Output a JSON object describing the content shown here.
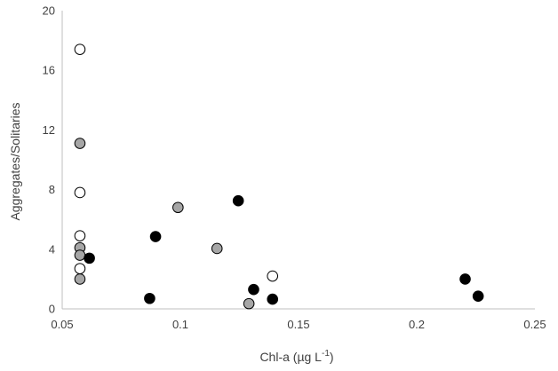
{
  "chart_data": {
    "type": "scatter",
    "xlabel": "Chl-a (µg L",
    "xlabel_sup": "-1",
    "xlabel_close": ")",
    "ylabel": "Aggregates/Solitaries",
    "xlim": [
      0.05,
      0.25
    ],
    "ylim": [
      0,
      20
    ],
    "x_ticks": [
      0.05,
      0.1,
      0.15,
      0.2,
      0.25
    ],
    "x_tick_labels": [
      "0.05",
      "0.1",
      "0.15",
      "0.2",
      "0.25"
    ],
    "y_ticks": [
      0,
      4,
      8,
      12,
      16,
      20
    ],
    "y_tick_labels": [
      "0",
      "4",
      "8",
      "12",
      "16",
      "20"
    ],
    "grid": false,
    "legend": "none",
    "series": [
      {
        "color": "#ffffff",
        "points": [
          {
            "x": 0.0575,
            "y": 17.4
          },
          {
            "x": 0.0575,
            "y": 7.8
          },
          {
            "x": 0.0575,
            "y": 4.9
          },
          {
            "x": 0.0575,
            "y": 2.7
          },
          {
            "x": 0.139,
            "y": 2.2
          }
        ]
      },
      {
        "color": "#a6a6a6",
        "points": [
          {
            "x": 0.0575,
            "y": 11.1
          },
          {
            "x": 0.0575,
            "y": 4.1
          },
          {
            "x": 0.0575,
            "y": 3.6
          },
          {
            "x": 0.0575,
            "y": 2.0
          },
          {
            "x": 0.099,
            "y": 6.8
          },
          {
            "x": 0.1155,
            "y": 4.05
          },
          {
            "x": 0.129,
            "y": 0.35
          }
        ]
      },
      {
        "color": "#000000",
        "points": [
          {
            "x": 0.0615,
            "y": 3.4
          },
          {
            "x": 0.087,
            "y": 0.7
          },
          {
            "x": 0.0895,
            "y": 4.85
          },
          {
            "x": 0.1245,
            "y": 7.25
          },
          {
            "x": 0.131,
            "y": 1.3
          },
          {
            "x": 0.139,
            "y": 0.65
          },
          {
            "x": 0.2205,
            "y": 2.0
          },
          {
            "x": 0.226,
            "y": 0.85
          }
        ]
      }
    ]
  }
}
